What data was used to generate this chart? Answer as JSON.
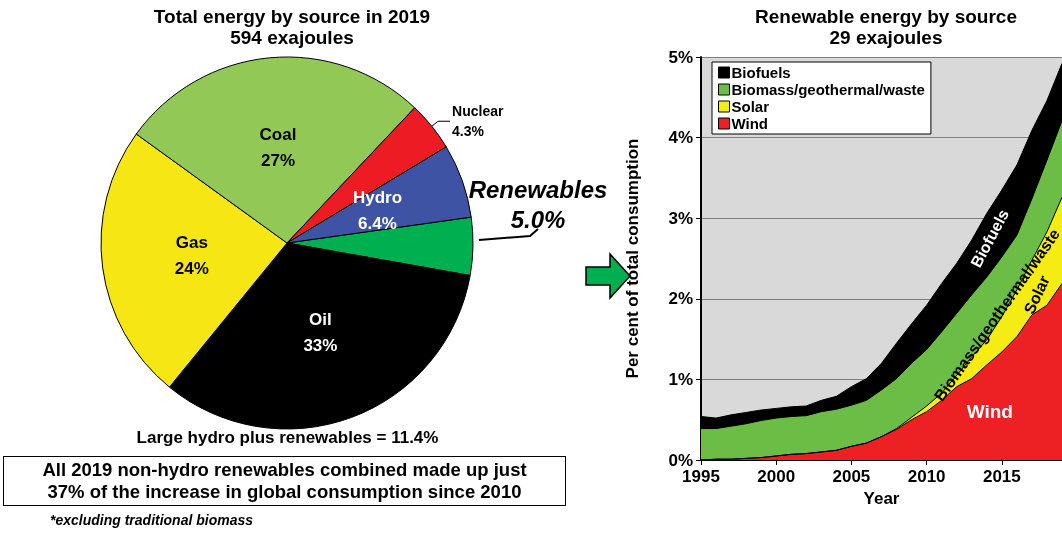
{
  "chart_data": [
    {
      "type": "pie",
      "title": "Total energy by source in 2019",
      "subtitle": "594 exajoules",
      "categories": [
        "Renewables",
        "Oil",
        "Gas",
        "Coal",
        "Nuclear",
        "Hydro"
      ],
      "values": [
        5.0,
        33,
        24,
        27,
        4.3,
        6.4
      ],
      "value_labels": [
        "5.0%",
        "33%",
        "24%",
        "27%",
        "4.3%",
        "6.4%"
      ],
      "colors": [
        "#00b050",
        "#000000",
        "#f5e614",
        "#92c956",
        "#ed1c24",
        "#3e53a4"
      ],
      "annotations": [
        "Large hydro plus renewables = 11.4%",
        "All 2019 non-hydro renewables combined made up just 37% of the increase in global consumption since 2010",
        "*excluding traditional biomass"
      ],
      "legend": false
    },
    {
      "type": "area",
      "title": "Renewable energy by source",
      "subtitle": "29 exajoules",
      "xlabel": "Year",
      "ylabel": "Per cent of total consumption",
      "x": [
        1995,
        1996,
        1997,
        1998,
        1999,
        2000,
        2001,
        2002,
        2003,
        2004,
        2005,
        2006,
        2007,
        2008,
        2009,
        2010,
        2011,
        2012,
        2013,
        2014,
        2015,
        2016,
        2017,
        2018,
        2019
      ],
      "stacked": true,
      "series": [
        {
          "name": "Wind",
          "color": "#ed2024",
          "values": [
            0.0,
            0.01,
            0.01,
            0.02,
            0.03,
            0.05,
            0.07,
            0.08,
            0.1,
            0.12,
            0.17,
            0.21,
            0.29,
            0.38,
            0.5,
            0.6,
            0.74,
            0.91,
            1.01,
            1.18,
            1.34,
            1.53,
            1.8,
            1.92,
            2.19
          ]
        },
        {
          "name": "Solar",
          "color": "#f5ec14",
          "values": [
            0,
            0,
            0,
            0,
            0,
            0,
            0,
            0,
            0,
            0,
            0,
            0,
            0,
            0.01,
            0.03,
            0.07,
            0.09,
            0.14,
            0.27,
            0.31,
            0.44,
            0.58,
            0.68,
            0.91,
            1.07
          ]
        },
        {
          "name": "Biomass/geothermal/waste",
          "color": "#6bbd45",
          "values": [
            0.39,
            0.38,
            0.41,
            0.43,
            0.46,
            0.47,
            0.47,
            0.47,
            0.5,
            0.51,
            0.51,
            0.53,
            0.58,
            0.62,
            0.67,
            0.7,
            0.76,
            0.77,
            0.77,
            0.78,
            0.74,
            0.68,
            0.76,
            0.89,
            0.95
          ]
        },
        {
          "name": "Biofuels",
          "color": "#000000",
          "values": [
            0.15,
            0.13,
            0.14,
            0.14,
            0.13,
            0.12,
            0.12,
            0.12,
            0.14,
            0.16,
            0.23,
            0.27,
            0.33,
            0.44,
            0.49,
            0.55,
            0.6,
            0.62,
            0.68,
            0.79,
            0.83,
            0.87,
            0.85,
            0.74,
            0.71
          ]
        }
      ],
      "xlim": [
        1995,
        2019
      ],
      "xticks": [
        1995,
        2000,
        2005,
        2010,
        2015
      ],
      "ylim": [
        0,
        5
      ],
      "yticks": [
        {
          "value": 0,
          "label": "0%"
        },
        {
          "value": 1,
          "label": "1%"
        },
        {
          "value": 2,
          "label": "2%"
        },
        {
          "value": 3,
          "label": "3%"
        },
        {
          "value": 4,
          "label": "4%"
        },
        {
          "value": 5,
          "label": "5%"
        }
      ],
      "grid": "y",
      "legend": "top left",
      "annotations": [
        "Biofuels",
        "Biomass/geothermal/waste",
        "Solar",
        "Wind"
      ]
    }
  ]
}
